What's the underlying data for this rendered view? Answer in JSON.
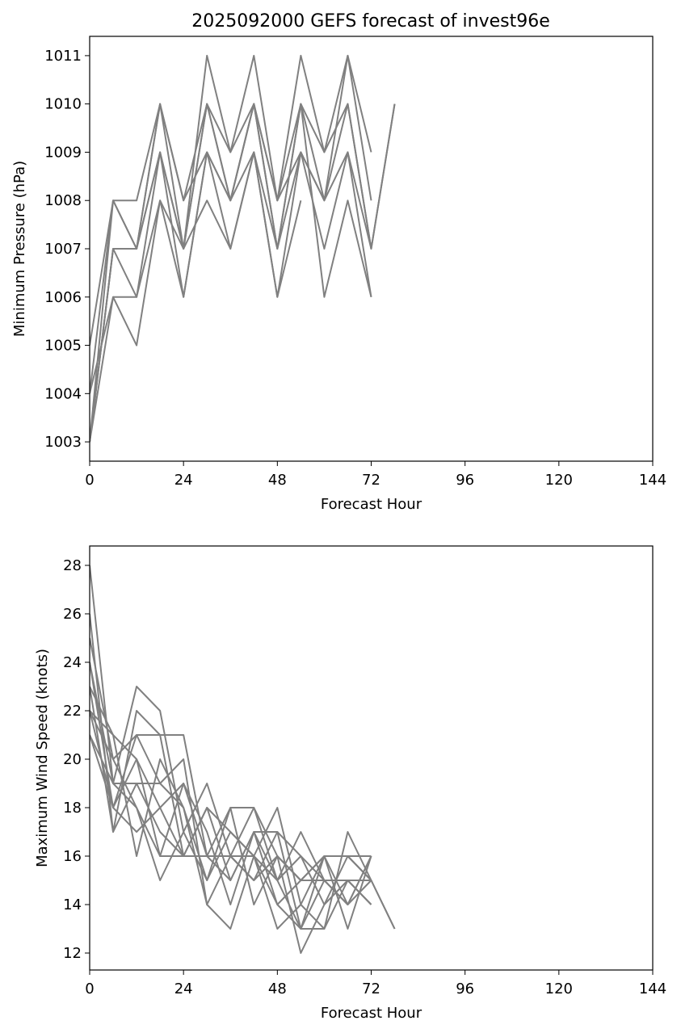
{
  "title": "2025092000 GEFS forecast of invest96e",
  "line_color": "#808080",
  "chart_data": [
    {
      "type": "line",
      "title": "2025092000 GEFS forecast of invest96e",
      "xlabel": "Forecast Hour",
      "ylabel": "Minimum Pressure (hPa)",
      "xlim": [
        0,
        144
      ],
      "ylim": [
        1002.6,
        1011.4
      ],
      "xticks": [
        0,
        24,
        48,
        72,
        96,
        120,
        144
      ],
      "yticks": [
        1003,
        1004,
        1005,
        1006,
        1007,
        1008,
        1009,
        1010,
        1011
      ],
      "x": [
        0,
        6,
        12,
        18,
        24,
        30,
        36,
        42,
        48,
        54,
        60,
        66,
        72,
        78
      ],
      "series": [
        {
          "values": [
            1003,
            1007,
            1007,
            1010,
            1008,
            1010,
            1009,
            1011,
            1008,
            1011,
            1009,
            1011,
            1009,
            null
          ]
        },
        {
          "values": [
            1003,
            1008,
            1008,
            1010,
            1007,
            1011,
            1009,
            1010,
            1008,
            1010,
            1009,
            1010,
            1007,
            1010
          ]
        },
        {
          "values": [
            1004,
            1008,
            1007,
            1009,
            1007,
            1010,
            1008,
            1010,
            1007,
            1010,
            1008,
            1011,
            1008,
            null
          ]
        },
        {
          "values": [
            1003,
            1007,
            1006,
            1009,
            1006,
            1009,
            1008,
            1009,
            1007,
            1009,
            1008,
            1009,
            1007,
            1010
          ]
        },
        {
          "values": [
            1004,
            1006,
            1006,
            1008,
            1006,
            1009,
            1007,
            1009,
            1006,
            1009,
            1007,
            1009,
            1006,
            null
          ]
        },
        {
          "values": [
            1003,
            1006,
            1005,
            1008,
            1007,
            1008,
            1007,
            1009,
            1006,
            1008,
            null,
            null,
            null,
            null
          ]
        },
        {
          "values": [
            1005,
            1008,
            1007,
            1010,
            1008,
            1009,
            1008,
            1010,
            1008,
            1009,
            1008,
            1010,
            1007,
            null
          ]
        },
        {
          "values": [
            1003,
            1007,
            1007,
            1009,
            1007,
            1010,
            1008,
            1010,
            1007,
            1010,
            1006,
            1008,
            1006,
            null
          ]
        }
      ]
    },
    {
      "type": "line",
      "title": "",
      "xlabel": "Forecast Hour",
      "ylabel": "Maximum Wind Speed (knots)",
      "xlim": [
        0,
        144
      ],
      "ylim": [
        11.3,
        28.8
      ],
      "xticks": [
        0,
        24,
        48,
        72,
        96,
        120,
        144
      ],
      "yticks": [
        12,
        14,
        16,
        18,
        20,
        22,
        24,
        26,
        28
      ],
      "x": [
        0,
        6,
        12,
        18,
        24,
        30,
        36,
        42,
        48,
        54,
        60,
        66,
        72,
        78
      ],
      "series": [
        {
          "values": [
            28,
            19,
            23,
            22,
            17,
            19,
            16,
            18,
            16,
            15,
            16,
            16,
            16,
            null
          ]
        },
        {
          "values": [
            26,
            17,
            22,
            21,
            16,
            18,
            15,
            17,
            14,
            13,
            15,
            14,
            16,
            null
          ]
        },
        {
          "values": [
            25,
            20,
            21,
            21,
            21,
            16,
            18,
            18,
            15,
            13,
            13,
            17,
            15,
            13
          ]
        },
        {
          "values": [
            24,
            18,
            21,
            19,
            18,
            15,
            17,
            16,
            13,
            14,
            16,
            13,
            16,
            null
          ]
        },
        {
          "values": [
            23,
            21,
            16,
            20,
            18,
            14,
            13,
            16,
            18,
            14,
            13,
            15,
            15,
            null
          ]
        },
        {
          "values": [
            22,
            18,
            20,
            18,
            19,
            16,
            15,
            17,
            17,
            16,
            14,
            16,
            15,
            null
          ]
        },
        {
          "values": [
            21,
            19,
            18,
            15,
            17,
            15,
            18,
            14,
            16,
            12,
            14,
            15,
            14,
            null
          ]
        },
        {
          "values": [
            23,
            17,
            19,
            19,
            20,
            14,
            16,
            15,
            17,
            13,
            16,
            14,
            15,
            null
          ]
        },
        {
          "values": [
            22,
            20,
            18,
            16,
            19,
            17,
            14,
            17,
            15,
            16,
            15,
            14,
            16,
            null
          ]
        },
        {
          "values": [
            24,
            19,
            19,
            17,
            16,
            18,
            17,
            16,
            14,
            15,
            15,
            15,
            15,
            null
          ]
        },
        {
          "values": [
            21,
            18,
            17,
            18,
            16,
            16,
            16,
            15,
            16,
            15,
            16,
            16,
            15,
            13
          ]
        },
        {
          "values": [
            22,
            21,
            20,
            16,
            16,
            16,
            16,
            16,
            15,
            17,
            15,
            15,
            14,
            null
          ]
        }
      ]
    }
  ]
}
